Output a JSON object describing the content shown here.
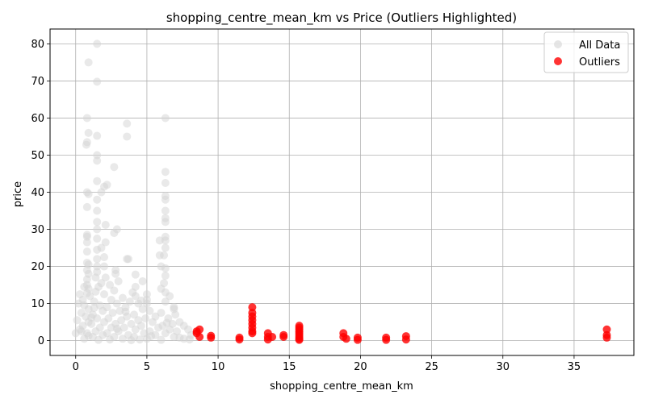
{
  "chart_data": {
    "type": "scatter",
    "title": "shopping_centre_mean_km vs Price (Outliers Highlighted)",
    "xlabel": "shopping_centre_mean_km",
    "ylabel": "price",
    "xlim": [
      -1.8,
      39.2
    ],
    "ylim": [
      -4.0,
      84.0
    ],
    "xticks": [
      0,
      5,
      10,
      15,
      20,
      25,
      30,
      35
    ],
    "yticks": [
      0,
      10,
      20,
      30,
      40,
      50,
      60,
      70,
      80
    ],
    "grid": true,
    "legend_position": "top-right",
    "colors": {
      "all": "#d3d3d3",
      "outliers": "#ff0000"
    },
    "series": [
      {
        "name": "All Data",
        "color": "#d3d3d3",
        "points": [
          [
            1.5,
            80.0
          ],
          [
            0.9,
            75.0
          ],
          [
            1.5,
            69.8
          ],
          [
            6.3,
            60.0
          ],
          [
            0.8,
            60.0
          ],
          [
            3.6,
            58.5
          ],
          [
            0.9,
            56.0
          ],
          [
            1.5,
            55.2
          ],
          [
            3.6,
            55.0
          ],
          [
            0.8,
            53.5
          ],
          [
            0.75,
            52.8
          ],
          [
            1.5,
            50.0
          ],
          [
            1.5,
            48.5
          ],
          [
            2.7,
            46.8
          ],
          [
            6.3,
            45.5
          ],
          [
            1.5,
            43.0
          ],
          [
            6.3,
            42.5
          ],
          [
            2.2,
            42.0
          ],
          [
            2.0,
            41.5
          ],
          [
            1.8,
            40.0
          ],
          [
            0.8,
            40.0
          ],
          [
            0.9,
            39.5
          ],
          [
            6.3,
            39.0
          ],
          [
            6.3,
            38.0
          ],
          [
            1.5,
            38.0
          ],
          [
            0.8,
            36.0
          ],
          [
            1.5,
            35.0
          ],
          [
            6.3,
            35.0
          ],
          [
            6.3,
            33.0
          ],
          [
            1.5,
            32.0
          ],
          [
            6.3,
            32.0
          ],
          [
            1.5,
            30.0
          ],
          [
            2.9,
            30.0
          ],
          [
            2.1,
            31.2
          ],
          [
            2.7,
            29.0
          ],
          [
            0.8,
            28.5
          ],
          [
            0.8,
            28.0
          ],
          [
            1.5,
            27.5
          ],
          [
            6.3,
            28.0
          ],
          [
            6.3,
            27.0
          ],
          [
            5.9,
            27.0
          ],
          [
            2.1,
            26.5
          ],
          [
            0.8,
            26.5
          ],
          [
            1.8,
            25.0
          ],
          [
            6.3,
            25.0
          ],
          [
            1.5,
            24.5
          ],
          [
            0.8,
            24.0
          ],
          [
            6.2,
            23.0
          ],
          [
            5.9,
            23.0
          ],
          [
            3.6,
            22.0
          ],
          [
            3.7,
            22.0
          ],
          [
            1.5,
            22.0
          ],
          [
            2.0,
            22.5
          ],
          [
            0.8,
            21.0
          ],
          [
            0.9,
            20.5
          ],
          [
            1.5,
            20.0
          ],
          [
            2.0,
            20.0
          ],
          [
            6.0,
            20.0
          ],
          [
            6.3,
            19.5
          ],
          [
            2.8,
            19.0
          ],
          [
            0.8,
            19.0
          ],
          [
            1.5,
            18.5
          ],
          [
            2.8,
            18.0
          ],
          [
            0.9,
            18.0
          ],
          [
            4.2,
            17.8
          ],
          [
            6.3,
            17.5
          ],
          [
            1.4,
            17.0
          ],
          [
            2.1,
            17.0
          ],
          [
            0.8,
            16.5
          ],
          [
            4.7,
            16.0
          ],
          [
            3.0,
            16.0
          ],
          [
            1.8,
            15.5
          ],
          [
            6.2,
            15.5
          ],
          [
            0.8,
            15.0
          ],
          [
            2.4,
            15.0
          ],
          [
            1.6,
            14.5
          ],
          [
            4.2,
            14.5
          ],
          [
            6.0,
            14.0
          ],
          [
            0.9,
            14.0
          ],
          [
            2.7,
            13.5
          ],
          [
            1.4,
            13.2
          ],
          [
            4.0,
            13.0
          ],
          [
            6.3,
            13.0
          ],
          [
            0.8,
            12.8
          ],
          [
            0.3,
            12.5
          ],
          [
            2.0,
            12.5
          ],
          [
            5.0,
            12.5
          ],
          [
            4.2,
            12.0
          ],
          [
            1.0,
            12.0
          ],
          [
            6.6,
            12.0
          ],
          [
            3.3,
            11.5
          ],
          [
            5.0,
            11.0
          ],
          [
            0.5,
            11.0
          ],
          [
            2.5,
            11.0
          ],
          [
            1.3,
            10.5
          ],
          [
            3.8,
            10.5
          ],
          [
            6.3,
            10.5
          ],
          [
            0.2,
            10.0
          ],
          [
            2.9,
            10.0
          ],
          [
            4.4,
            10.0
          ],
          [
            5.0,
            10.0
          ],
          [
            1.7,
            9.5
          ],
          [
            0.6,
            9.5
          ],
          [
            6.9,
            9.0
          ],
          [
            3.5,
            9.0
          ],
          [
            2.2,
            9.0
          ],
          [
            4.7,
            8.5
          ],
          [
            0.9,
            8.5
          ],
          [
            6.9,
            8.5
          ],
          [
            3.1,
            8.0
          ],
          [
            5.2,
            8.0
          ],
          [
            1.9,
            8.0
          ],
          [
            0.4,
            7.5
          ],
          [
            6.0,
            7.5
          ],
          [
            2.6,
            7.5
          ],
          [
            4.1,
            7.0
          ],
          [
            1.2,
            7.0
          ],
          [
            7.0,
            7.0
          ],
          [
            3.6,
            6.5
          ],
          [
            5.6,
            6.5
          ],
          [
            0.7,
            6.5
          ],
          [
            2.3,
            6.0
          ],
          [
            4.9,
            6.0
          ],
          [
            6.5,
            6.0
          ],
          [
            1.5,
            6.0
          ],
          [
            3.2,
            5.5
          ],
          [
            0.1,
            5.5
          ],
          [
            4.4,
            5.5
          ],
          [
            7.3,
            5.0
          ],
          [
            2.0,
            5.0
          ],
          [
            5.4,
            5.0
          ],
          [
            0.9,
            5.0
          ],
          [
            6.8,
            4.5
          ],
          [
            3.9,
            4.5
          ],
          [
            1.1,
            4.5
          ],
          [
            2.8,
            4.5
          ],
          [
            7.6,
            4.0
          ],
          [
            4.6,
            4.0
          ],
          [
            0.5,
            4.0
          ],
          [
            6.1,
            4.0
          ],
          [
            3.4,
            3.5
          ],
          [
            1.7,
            3.5
          ],
          [
            5.8,
            3.5
          ],
          [
            2.5,
            3.5
          ],
          [
            7.9,
            3.0
          ],
          [
            4.2,
            3.0
          ],
          [
            0.3,
            3.0
          ],
          [
            6.6,
            3.0
          ],
          [
            3.0,
            2.5
          ],
          [
            1.4,
            2.5
          ],
          [
            5.2,
            2.5
          ],
          [
            7.1,
            2.5
          ],
          [
            2.2,
            2.0
          ],
          [
            0.8,
            2.0
          ],
          [
            4.8,
            2.0
          ],
          [
            6.3,
            2.0
          ],
          [
            8.1,
            1.5
          ],
          [
            3.7,
            1.5
          ],
          [
            1.9,
            1.5
          ],
          [
            5.6,
            1.5
          ],
          [
            0.0,
            2.0
          ],
          [
            2.7,
            1.0
          ],
          [
            4.1,
            1.0
          ],
          [
            6.9,
            1.0
          ],
          [
            1.2,
            1.0
          ],
          [
            7.6,
            0.5
          ],
          [
            3.3,
            0.5
          ],
          [
            0.6,
            0.5
          ],
          [
            5.0,
            0.5
          ],
          [
            2.4,
            0.3
          ],
          [
            4.5,
            0.3
          ],
          [
            1.6,
            0.2
          ],
          [
            6.0,
            0.2
          ],
          [
            8.0,
            0.3
          ],
          [
            3.9,
            0.1
          ],
          [
            7.3,
            0.8
          ],
          [
            5.3,
            1.2
          ],
          [
            0.9,
            1.3
          ],
          [
            2.9,
            3.2
          ],
          [
            6.4,
            4.8
          ],
          [
            1.3,
            8.8
          ],
          [
            0.6,
            14.5
          ],
          [
            1.1,
            6.2
          ],
          [
            0.4,
            2.5
          ],
          [
            3.5,
            7.8
          ],
          [
            4.6,
            10.8
          ]
        ]
      },
      {
        "name": "Outliers",
        "color": "#ff0000",
        "points": [
          [
            8.5,
            2.5
          ],
          [
            8.7,
            3.0
          ],
          [
            8.7,
            1.0
          ],
          [
            8.5,
            2.0
          ],
          [
            9.5,
            1.3
          ],
          [
            9.5,
            0.8
          ],
          [
            11.5,
            0.8
          ],
          [
            11.5,
            0.3
          ],
          [
            12.4,
            9.0
          ],
          [
            12.4,
            7.5
          ],
          [
            12.4,
            6.5
          ],
          [
            12.4,
            5.5
          ],
          [
            12.4,
            4.5
          ],
          [
            12.4,
            3.5
          ],
          [
            12.4,
            2.5
          ],
          [
            12.4,
            2.0
          ],
          [
            13.5,
            2.0
          ],
          [
            13.5,
            1.0
          ],
          [
            13.5,
            0.3
          ],
          [
            13.8,
            1.0
          ],
          [
            14.6,
            1.5
          ],
          [
            14.6,
            1.0
          ],
          [
            15.7,
            4.0
          ],
          [
            15.7,
            3.5
          ],
          [
            15.7,
            3.0
          ],
          [
            15.7,
            2.5
          ],
          [
            15.7,
            2.0
          ],
          [
            15.7,
            1.5
          ],
          [
            15.7,
            1.0
          ],
          [
            15.7,
            0.5
          ],
          [
            15.7,
            0.2
          ],
          [
            18.8,
            2.0
          ],
          [
            18.8,
            1.0
          ],
          [
            19.0,
            0.5
          ],
          [
            19.8,
            0.8
          ],
          [
            19.8,
            0.2
          ],
          [
            21.8,
            0.8
          ],
          [
            21.8,
            0.2
          ],
          [
            23.2,
            1.2
          ],
          [
            23.2,
            0.3
          ],
          [
            37.3,
            3.0
          ],
          [
            37.3,
            1.5
          ],
          [
            37.3,
            0.8
          ]
        ]
      }
    ]
  }
}
